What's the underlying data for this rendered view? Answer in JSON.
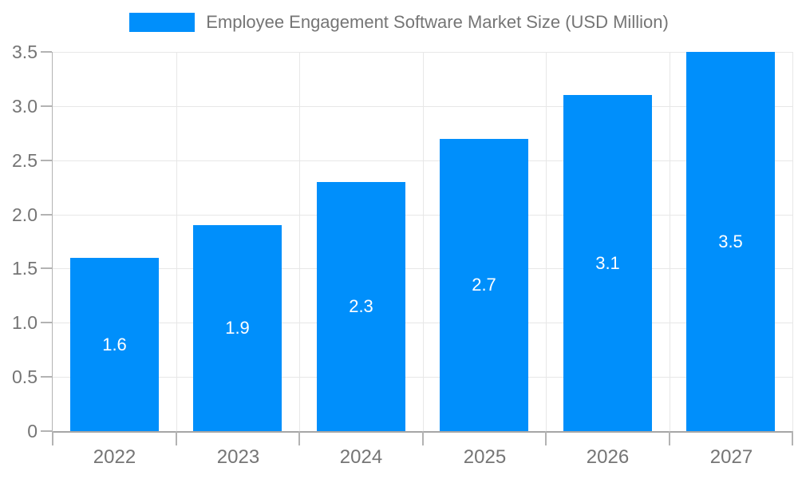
{
  "chart_data": {
    "type": "bar",
    "title": "Employee Engagement Software Market Size (USD Million)",
    "categories": [
      "2022",
      "2023",
      "2024",
      "2025",
      "2026",
      "2027"
    ],
    "values": [
      1.6,
      1.9,
      2.3,
      2.7,
      3.1,
      3.5
    ],
    "value_labels": [
      "1.6",
      "1.9",
      "2.3",
      "2.7",
      "3.1",
      "3.5"
    ],
    "xlabel": "",
    "ylabel": "",
    "ylim": [
      0,
      3.5
    ],
    "ytick_step": 0.5,
    "ytick_labels": [
      "0",
      "0.5",
      "1.0",
      "1.5",
      "2.0",
      "2.5",
      "3.0",
      "3.5"
    ],
    "grid": true,
    "legend_position": "top",
    "colors": {
      "bar": "#008FFB",
      "grid": "#e7e7e7",
      "axis": "#b3b3b3",
      "baseline": "#a6a6a6",
      "label_text": "#757575",
      "value_label_text": "#ffffff",
      "background": "#ffffff"
    }
  },
  "legend": {
    "label": "Employee Engagement Software Market Size (USD Million)"
  }
}
